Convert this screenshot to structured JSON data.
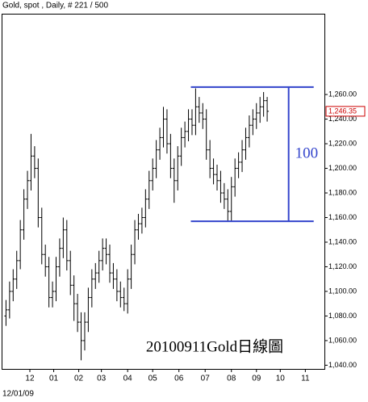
{
  "chart_data": {
    "type": "ohlc",
    "title": "Gold, spot , Daily, # 221 / 500",
    "start_date": "12/01/09",
    "x": [
      3,
      6,
      9,
      12,
      15,
      18,
      21,
      24,
      27,
      30,
      33,
      36,
      39,
      42,
      45,
      48,
      51,
      54,
      57,
      60,
      63,
      66,
      69,
      72,
      75,
      78,
      81,
      84,
      87,
      90,
      93,
      96,
      99,
      102,
      105,
      108,
      111,
      114,
      117,
      120,
      123,
      126,
      129,
      132,
      135,
      138,
      141,
      144,
      147,
      150,
      153,
      156,
      159,
      162,
      165,
      168,
      171,
      174,
      177,
      180,
      183,
      186,
      189,
      192,
      195,
      198,
      201,
      204,
      207,
      210,
      213,
      216,
      219,
      222
    ],
    "open": [
      1080,
      1085,
      1100,
      1110,
      1125,
      1150,
      1175,
      1190,
      1210,
      1200,
      1160,
      1130,
      1120,
      1095,
      1100,
      1120,
      1135,
      1150,
      1125,
      1105,
      1090,
      1075,
      1060,
      1075,
      1095,
      1110,
      1115,
      1125,
      1135,
      1130,
      1115,
      1110,
      1100,
      1095,
      1090,
      1110,
      1130,
      1150,
      1155,
      1160,
      1175,
      1190,
      1200,
      1215,
      1225,
      1240,
      1220,
      1200,
      1190,
      1210,
      1225,
      1230,
      1240,
      1235,
      1250,
      1245,
      1240,
      1215,
      1200,
      1195,
      1190,
      1180,
      1175,
      1165,
      1185,
      1200,
      1205,
      1215,
      1225,
      1235,
      1240,
      1245,
      1250,
      1255
    ],
    "high": [
      1093,
      1108,
      1118,
      1133,
      1158,
      1183,
      1198,
      1228,
      1218,
      1208,
      1168,
      1138,
      1128,
      1108,
      1128,
      1143,
      1160,
      1158,
      1133,
      1113,
      1098,
      1083,
      1083,
      1103,
      1118,
      1123,
      1133,
      1143,
      1143,
      1138,
      1123,
      1118,
      1108,
      1103,
      1118,
      1138,
      1158,
      1163,
      1168,
      1183,
      1198,
      1208,
      1223,
      1233,
      1250,
      1248,
      1228,
      1208,
      1218,
      1233,
      1238,
      1248,
      1248,
      1265,
      1258,
      1253,
      1248,
      1223,
      1208,
      1203,
      1198,
      1188,
      1183,
      1193,
      1208,
      1213,
      1223,
      1233,
      1243,
      1248,
      1253,
      1258,
      1262,
      1258
    ],
    "low": [
      1072,
      1078,
      1092,
      1102,
      1118,
      1142,
      1167,
      1182,
      1192,
      1152,
      1122,
      1112,
      1087,
      1087,
      1092,
      1112,
      1127,
      1117,
      1097,
      1076,
      1067,
      1044,
      1052,
      1067,
      1087,
      1102,
      1107,
      1117,
      1122,
      1107,
      1102,
      1092,
      1087,
      1084,
      1082,
      1102,
      1122,
      1142,
      1147,
      1152,
      1167,
      1182,
      1192,
      1207,
      1217,
      1212,
      1192,
      1172,
      1182,
      1202,
      1217,
      1222,
      1227,
      1227,
      1237,
      1232,
      1207,
      1192,
      1187,
      1182,
      1172,
      1167,
      1157,
      1157,
      1177,
      1192,
      1197,
      1207,
      1217,
      1227,
      1232,
      1237,
      1242,
      1238
    ],
    "close": [
      1085,
      1100,
      1110,
      1125,
      1150,
      1175,
      1190,
      1210,
      1200,
      1160,
      1130,
      1120,
      1095,
      1100,
      1120,
      1135,
      1150,
      1125,
      1105,
      1090,
      1075,
      1060,
      1075,
      1095,
      1110,
      1115,
      1125,
      1135,
      1130,
      1115,
      1110,
      1100,
      1095,
      1090,
      1110,
      1130,
      1150,
      1155,
      1160,
      1175,
      1190,
      1200,
      1215,
      1225,
      1240,
      1220,
      1200,
      1190,
      1210,
      1225,
      1230,
      1240,
      1235,
      1250,
      1245,
      1240,
      1215,
      1200,
      1195,
      1190,
      1180,
      1175,
      1165,
      1185,
      1200,
      1205,
      1215,
      1225,
      1235,
      1240,
      1245,
      1250,
      1255,
      1246.35
    ],
    "color": "#000000",
    "xlim": [
      0,
      270
    ],
    "xticks": [
      {
        "value": 23,
        "label": "12"
      },
      {
        "value": 43,
        "label": "01"
      },
      {
        "value": 64,
        "label": "02"
      },
      {
        "value": 83,
        "label": "03"
      },
      {
        "value": 105,
        "label": "04"
      },
      {
        "value": 126,
        "label": "05"
      },
      {
        "value": 148,
        "label": "06"
      },
      {
        "value": 170,
        "label": "07"
      },
      {
        "value": 192,
        "label": "08"
      },
      {
        "value": 213,
        "label": "09"
      },
      {
        "value": 233,
        "label": "10"
      },
      {
        "value": 254,
        "label": "11"
      }
    ],
    "ylim": [
      1037,
      1325
    ],
    "yticks": [
      {
        "value": 1040,
        "label": "1,040.00"
      },
      {
        "value": 1060,
        "label": "1,060.00"
      },
      {
        "value": 1080,
        "label": "1,080.00"
      },
      {
        "value": 1100,
        "label": "1,100.00"
      },
      {
        "value": 1120,
        "label": "1,120.00"
      },
      {
        "value": 1140,
        "label": "1,140.00"
      },
      {
        "value": 1160,
        "label": "1,160.00"
      },
      {
        "value": 1180,
        "label": "1,180.00"
      },
      {
        "value": 1200,
        "label": "1,200.00"
      },
      {
        "value": 1220,
        "label": "1,220.00"
      },
      {
        "value": 1240,
        "label": "1,240.00"
      },
      {
        "value": 1260,
        "label": "1,260.00"
      }
    ],
    "last_price": {
      "value": 1246.35,
      "label": "1,246.35",
      "color": "#cc0000"
    },
    "levels": {
      "values": [
        1266,
        1157
      ],
      "x_range": [
        158,
        261
      ],
      "bracket_x": 240,
      "label": "100",
      "color": "#3344cc"
    },
    "annotation": "20100911Gold日線圖"
  }
}
